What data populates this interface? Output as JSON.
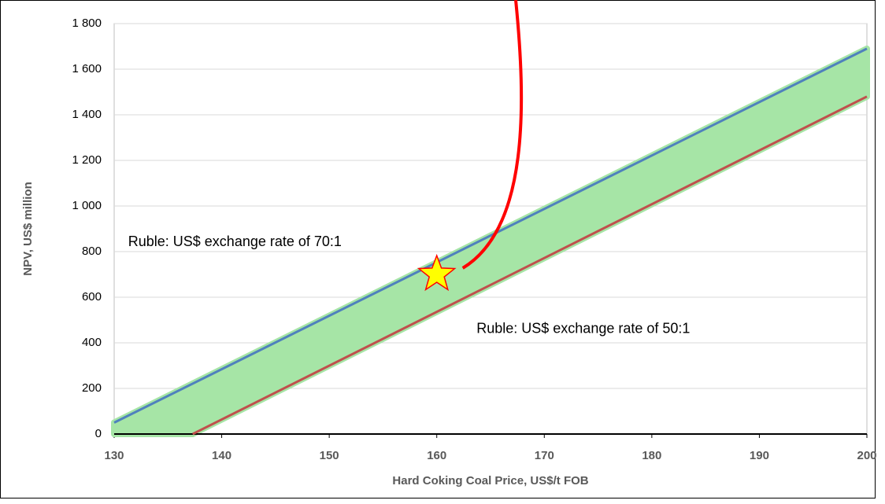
{
  "chart_data": {
    "type": "line",
    "x_label": "Hard Coking Coal Price, US$/t FOB",
    "y_label": "NPV, US$ million",
    "series": [
      {
        "color": "#4f81bd",
        "x": [
          130,
          200
        ],
        "values": [
          50,
          1690
        ]
      },
      {
        "color": "#c0504d",
        "x": [
          137.3,
          200
        ],
        "values": [
          0,
          1480
        ]
      }
    ],
    "band_color": "#a6e5a6",
    "marker": {
      "x": 160,
      "y": 700,
      "color": "#ffff00",
      "stroke": "#ff0000"
    },
    "annotations": [
      {
        "text": "Ruble: US$ exchange rate of 70:1",
        "x": 131.3,
        "y": 840
      },
      {
        "text": "Ruble: US$ exchange rate of 50:1",
        "x": 163.7,
        "y": 460
      }
    ],
    "xlim": [
      130,
      200
    ],
    "ylim": [
      0,
      1800
    ],
    "xticks": [
      130,
      140,
      150,
      160,
      170,
      180,
      190,
      200
    ],
    "yticks": [
      0,
      200,
      400,
      600,
      800,
      {
        "value": 1000,
        "label": "1 000"
      },
      {
        "value": 1200,
        "label": "1 200"
      },
      {
        "value": 1400,
        "label": "1 400"
      },
      {
        "value": 1600,
        "label": "1 600"
      },
      {
        "value": 1800,
        "label": "1 800"
      }
    ],
    "grid": true
  }
}
